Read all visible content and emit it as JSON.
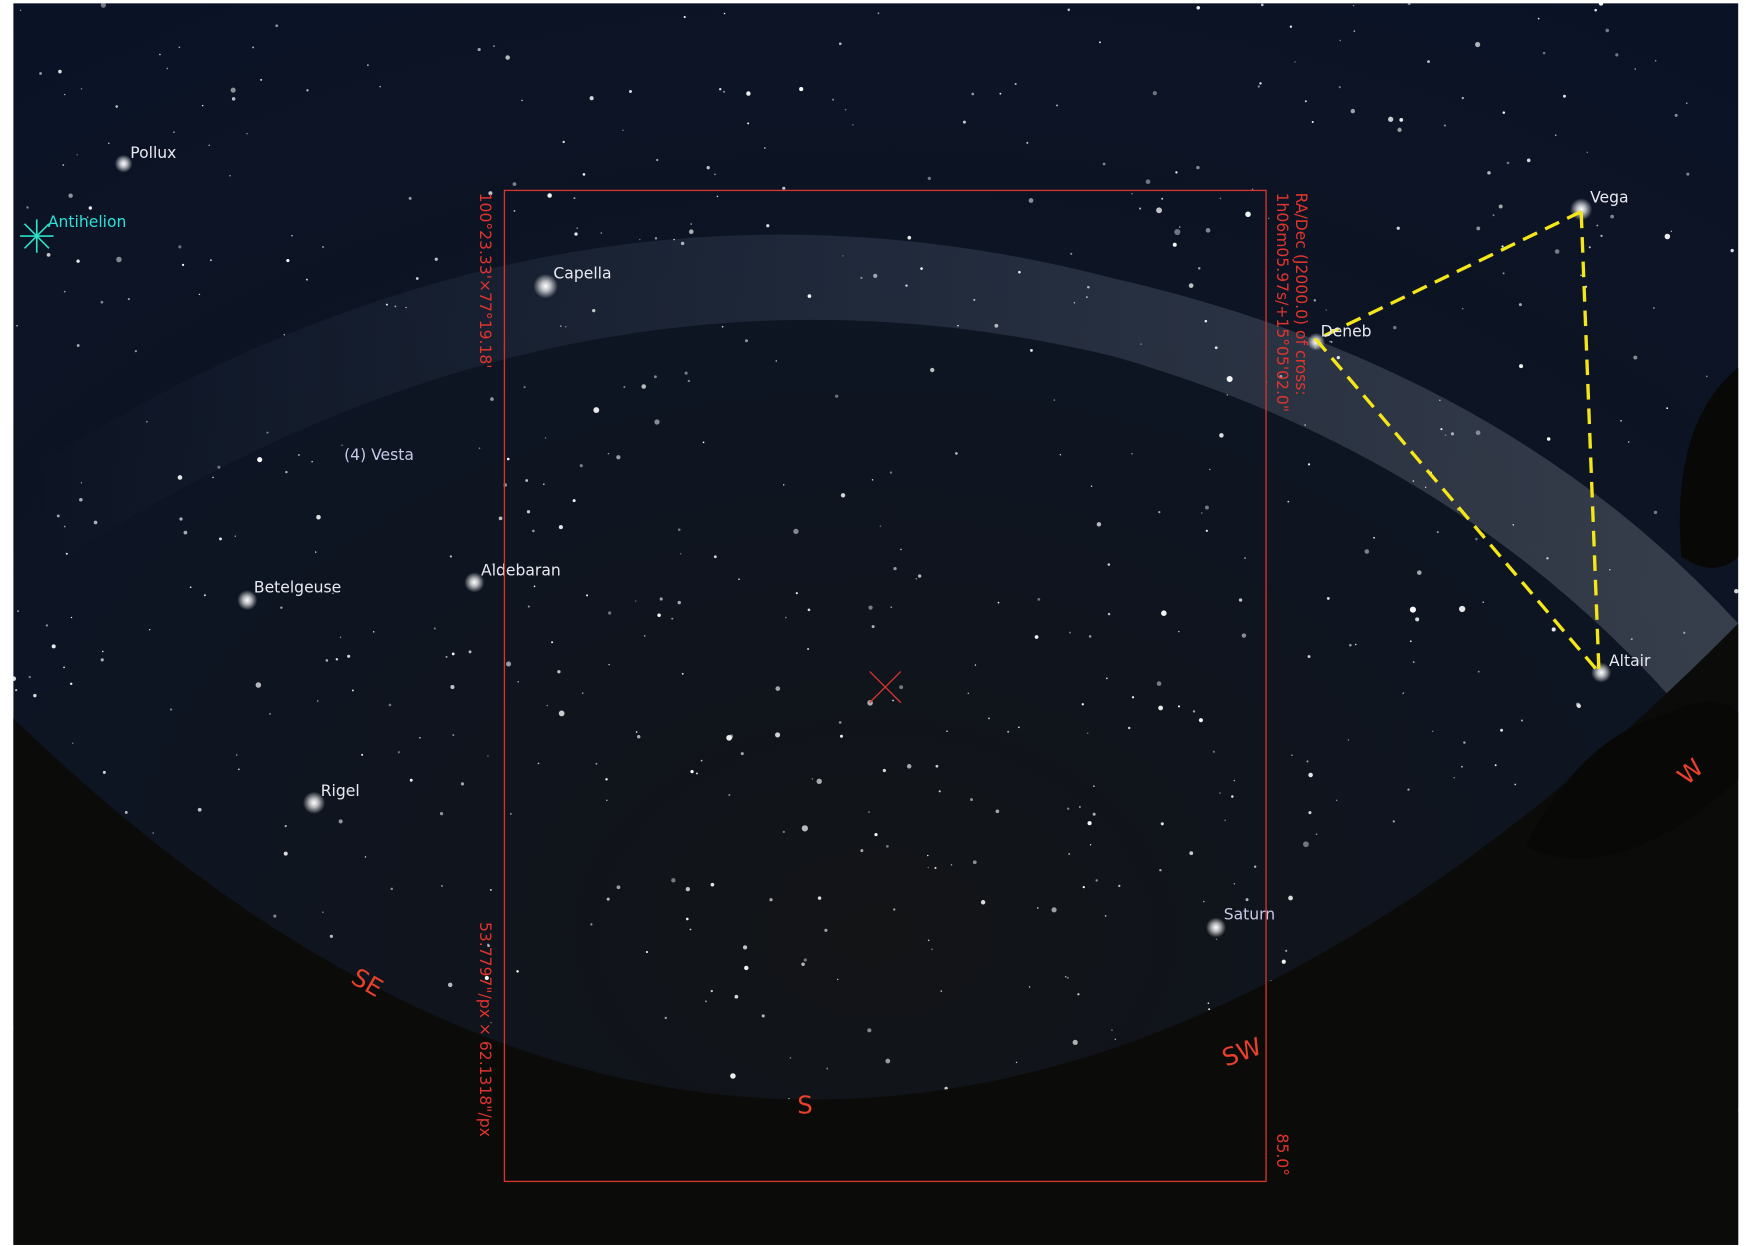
{
  "labels": {
    "pollux": "Pollux",
    "antihelion": "Antihelion",
    "capella": "Capella",
    "vesta": "(4) Vesta",
    "aldebaran": "Aldebaran",
    "betelgeuse": "Betelgeuse",
    "rigel": "Rigel",
    "saturn": "Saturn",
    "vega": "Vega",
    "deneb": "Deneb",
    "altair": "Altair"
  },
  "compass": {
    "se": "SE",
    "s": "S",
    "sw": "SW",
    "w": "W"
  },
  "frame": {
    "fov": "100°23.33'×77°19.18'",
    "radec_title": "RA/Dec (J2000.0) of cross:",
    "radec_value": "1h06m05.97s/+15°05'02.0\"",
    "scale": "53.7797\"/px × 62.1318\"/px",
    "rotation": "85.0°"
  }
}
